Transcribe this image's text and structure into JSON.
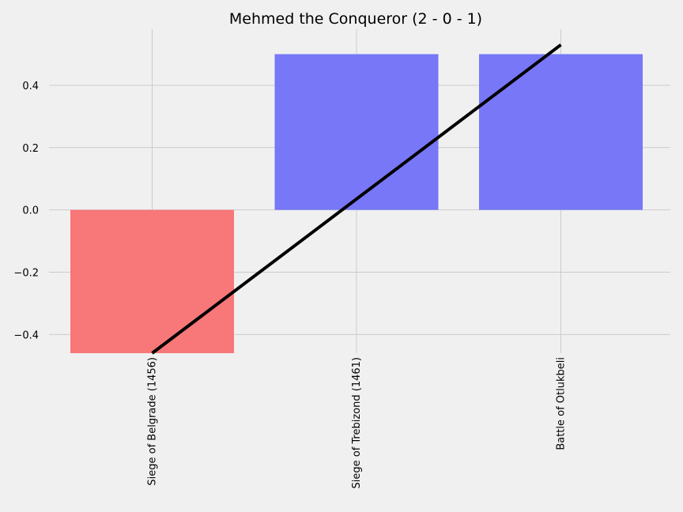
{
  "chart_data": {
    "type": "bar",
    "title": "Mehmed the Conqueror (2 - 0 - 1)",
    "xlabel": "",
    "ylabel": "",
    "categories": [
      "Siege of Belgrade (1456)",
      "Siege of Trebizond (1461)",
      "Battle of Otlukbeli"
    ],
    "values": [
      -0.46,
      0.5,
      0.5
    ],
    "bar_colors": [
      "#f87778",
      "#7777f8"
    ],
    "trend_line": {
      "x": [
        0,
        2
      ],
      "y": [
        -0.46,
        0.53
      ],
      "color": "#000000"
    },
    "ylim": [
      -0.46,
      0.58
    ],
    "yticks": [
      -0.4,
      -0.2,
      0.0,
      0.2,
      0.4
    ],
    "ytick_labels": [
      "−0.4",
      "−0.2",
      "0.0",
      "0.2",
      "0.4"
    ],
    "grid": true
  }
}
